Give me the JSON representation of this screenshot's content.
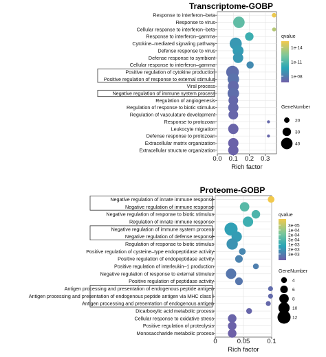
{
  "colors": {
    "low_q": "#f2c94c",
    "mid_q": "#7bc79c",
    "mid2_q": "#2aa6b6",
    "high_q": "#6f5ea8"
  },
  "chart_data": [
    {
      "type": "scatter",
      "title": "Transcriptome-GOBP",
      "xlabel": "Rich factor",
      "xticks": [
        "0.0",
        "0.1",
        "0.2",
        "0.3"
      ],
      "xlim": [
        0,
        0.37
      ],
      "legend_color_title": "qvalue",
      "legend_color_labels": [
        "1e-14",
        "1e-11",
        "1e-08"
      ],
      "legend_size_title": "GeneNumber",
      "legend_size_labels": [
        "20",
        "30",
        "40"
      ],
      "grid": true,
      "points": [
        {
          "term": "Response to interferon–beta",
          "rich": 0.355,
          "genes": 17,
          "q": 0.02
        },
        {
          "term": "Response to virus",
          "rich": 0.135,
          "genes": 40,
          "q": 0.45
        },
        {
          "term": "Cellular response to interferon–beta",
          "rich": 0.355,
          "genes": 15,
          "q": 0.18
        },
        {
          "term": "Response to interferon–gamma",
          "rich": 0.2,
          "genes": 30,
          "q": 0.58
        },
        {
          "term": "Cytokine–mediated signaling pathway",
          "rich": 0.115,
          "genes": 42,
          "q": 0.72
        },
        {
          "term": "Defense response to virus",
          "rich": 0.13,
          "genes": 38,
          "q": 0.7
        },
        {
          "term": "Defense response to symbiont",
          "rich": 0.13,
          "genes": 36,
          "q": 0.72
        },
        {
          "term": "Cellular response to interferon–gamma",
          "rich": 0.205,
          "genes": 26,
          "q": 0.78
        },
        {
          "term": "Positive regulation of cytokine production",
          "rich": 0.095,
          "genes": 44,
          "q": 0.92
        },
        {
          "term": "Positive regulation of response to external stimulus",
          "rich": 0.1,
          "genes": 40,
          "q": 0.9
        },
        {
          "term": "Viral process",
          "rich": 0.1,
          "genes": 38,
          "q": 0.94
        },
        {
          "term": "Negative regulation of immune system process",
          "rich": 0.1,
          "genes": 40,
          "q": 0.92
        },
        {
          "term": "Regulation of angiogenesis",
          "rich": 0.1,
          "genes": 34,
          "q": 0.95
        },
        {
          "term": "Regulation of response to biotic stimulus",
          "rich": 0.1,
          "genes": 36,
          "q": 0.95
        },
        {
          "term": "Regulation of vasculature development",
          "rich": 0.1,
          "genes": 34,
          "q": 0.96
        },
        {
          "term": "Response to protozoan",
          "rich": 0.32,
          "genes": 12,
          "q": 0.95
        },
        {
          "term": "Leukocyte migration",
          "rich": 0.1,
          "genes": 36,
          "q": 0.97
        },
        {
          "term": "Defense response to protozoan",
          "rich": 0.32,
          "genes": 12,
          "q": 0.96
        },
        {
          "term": "Extracellular matrix organization",
          "rich": 0.1,
          "genes": 36,
          "q": 0.98
        },
        {
          "term": "Extracellular structure organization",
          "rich": 0.1,
          "genes": 36,
          "q": 0.98
        }
      ]
    },
    {
      "type": "scatter",
      "title": "Proteome-GOBP",
      "xlabel": "Rich factor",
      "xticks": [
        "0",
        "0.05",
        "0.1"
      ],
      "xlim": [
        0,
        0.1
      ],
      "legend_color_title": "qvalue",
      "legend_color_labels": [
        "3e-05",
        "1e-04",
        "2e-04",
        "3e-04",
        "1e-03",
        "2e-03",
        "3e-03"
      ],
      "legend_size_title": "GeneNumber",
      "legend_size_labels": [
        "4",
        "6",
        "8",
        "10",
        "12"
      ],
      "grid": true,
      "points": [
        {
          "term": "Negative regulation of innate immune response",
          "rich": 0.099,
          "genes": 5,
          "q": 0.0
        },
        {
          "term": "Negative regulation of immune response",
          "rich": 0.052,
          "genes": 8,
          "q": 0.48
        },
        {
          "term": "Negative regulation of response to biotic stimulus",
          "rich": 0.072,
          "genes": 7,
          "q": 0.52
        },
        {
          "term": "Regulation of innate immune response",
          "rich": 0.058,
          "genes": 9,
          "q": 0.58
        },
        {
          "term": "Negative regulation of immune system process",
          "rich": 0.028,
          "genes": 12,
          "q": 0.68
        },
        {
          "term": "Negative regulation of defense response",
          "rich": 0.038,
          "genes": 9,
          "q": 0.7
        },
        {
          "term": "Regulation of response to biotic stimulus",
          "rich": 0.03,
          "genes": 10,
          "q": 0.74
        },
        {
          "term": "Positive regulation of cysteine–type endopeptidase activity",
          "rich": 0.048,
          "genes": 5,
          "q": 0.8
        },
        {
          "term": "Positive regulation of endopeptidase activity",
          "rich": 0.042,
          "genes": 6,
          "q": 0.82
        },
        {
          "term": "Positive regulation of interleukin–1 production",
          "rich": 0.072,
          "genes": 4,
          "q": 0.84
        },
        {
          "term": "Negative regulation of response to external stimulus",
          "rich": 0.028,
          "genes": 9,
          "q": 0.88
        },
        {
          "term": "Positive regulation of peptidase activity",
          "rich": 0.042,
          "genes": 6,
          "q": 0.88
        },
        {
          "term": "Antigen processing and presentation of endogenous peptide antigen",
          "rich": 0.098,
          "genes": 3,
          "q": 0.93
        },
        {
          "term": "Antigen processing and presentation of endogenous peptide antigen via MHC class I",
          "rich": 0.098,
          "genes": 3,
          "q": 0.94
        },
        {
          "term": "Antigen processing and presentation of endogenous antigen",
          "rich": 0.094,
          "genes": 3,
          "q": 0.95
        },
        {
          "term": "Dicarboxylic acid metabolic process",
          "rich": 0.06,
          "genes": 4,
          "q": 0.96
        },
        {
          "term": "Cellular response to oxidative stress",
          "rich": 0.03,
          "genes": 7,
          "q": 0.97
        },
        {
          "term": "Positive regulation of proteolysis",
          "rich": 0.03,
          "genes": 7,
          "q": 0.98
        },
        {
          "term": "Monosaccharide metabolic process",
          "rich": 0.03,
          "genes": 7,
          "q": 0.99
        }
      ]
    }
  ],
  "highlight_groups": [
    [
      8,
      9,
      11
    ],
    [
      0,
      1,
      4,
      5,
      12,
      13,
      14
    ]
  ]
}
